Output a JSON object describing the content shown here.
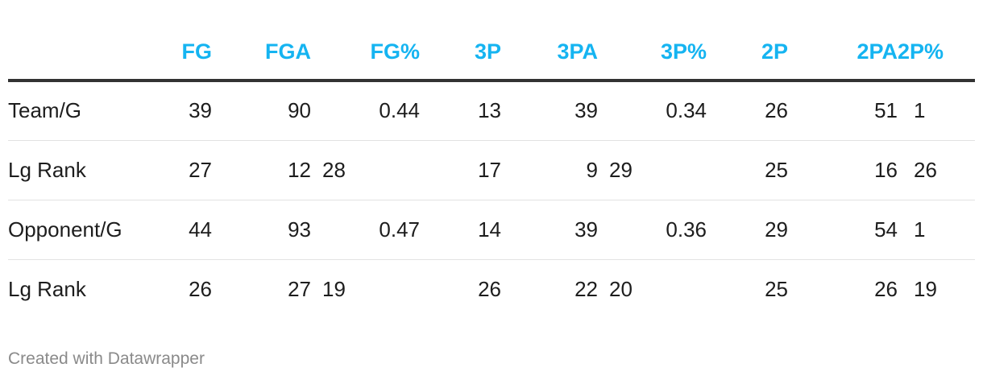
{
  "chart_data": {
    "type": "table",
    "columns": [
      "",
      "FG",
      "FGA",
      "FG%",
      "3P",
      "3PA",
      "3P%",
      "2P",
      "2PA",
      "2P%"
    ],
    "rows": [
      {
        "label": "Team/G",
        "values": [
          "39",
          "90",
          "0.44",
          "13",
          "39",
          "0.34",
          "26",
          "51",
          "1"
        ]
      },
      {
        "label": "Lg Rank",
        "values": [
          "27",
          "12",
          "28",
          "17",
          "9",
          "29",
          "25",
          "16",
          "26"
        ]
      },
      {
        "label": "Opponent/G",
        "values": [
          "44",
          "93",
          "0.47",
          "14",
          "39",
          "0.36",
          "29",
          "54",
          "1"
        ]
      },
      {
        "label": "Lg Rank",
        "values": [
          "26",
          "27",
          "19",
          "26",
          "22",
          "20",
          "25",
          "26",
          "19"
        ]
      }
    ]
  },
  "footer": {
    "credit": "Created with Datawrapper"
  },
  "colors": {
    "header_text": "#15b4f1",
    "body_text": "#1d1d1d",
    "header_rule": "#333333",
    "row_rule": "#e2e2e2",
    "footer_text": "#8a8a8a"
  }
}
